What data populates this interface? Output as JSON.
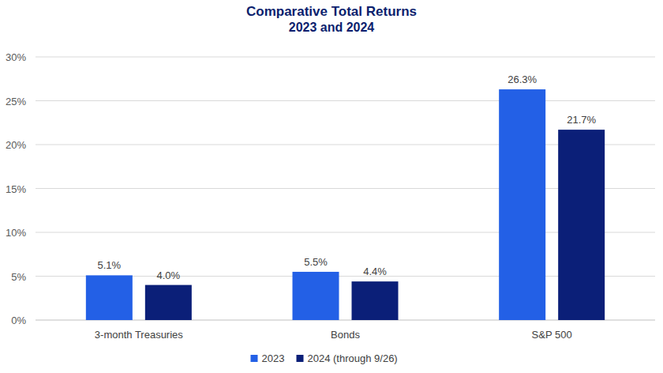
{
  "chart_data": {
    "type": "bar",
    "title": "Comparative Total Returns",
    "subtitle": "2023 and 2024",
    "categories": [
      "3-month Treasuries",
      "Bonds",
      "S&P 500"
    ],
    "series": [
      {
        "name": "2023",
        "color": "#2360e6",
        "values": [
          5.1,
          5.5,
          26.3
        ],
        "value_labels": [
          "5.1%",
          "5.5%",
          "26.3%"
        ]
      },
      {
        "name": "2024 (through 9/26)",
        "color": "#0b1f78",
        "values": [
          4.0,
          4.4,
          21.7
        ],
        "value_labels": [
          "4.0%",
          "4.4%",
          "21.7%"
        ]
      }
    ],
    "ylim": [
      0,
      30
    ],
    "yticks": [
      {
        "value": 0,
        "label": "0%"
      },
      {
        "value": 5,
        "label": "5%"
      },
      {
        "value": 10,
        "label": "10%"
      },
      {
        "value": 15,
        "label": "15%"
      },
      {
        "value": 20,
        "label": "20%"
      },
      {
        "value": 25,
        "label": "25%"
      },
      {
        "value": 30,
        "label": "30%"
      }
    ],
    "grid": true,
    "legend": "bottom",
    "data_labels": true
  }
}
